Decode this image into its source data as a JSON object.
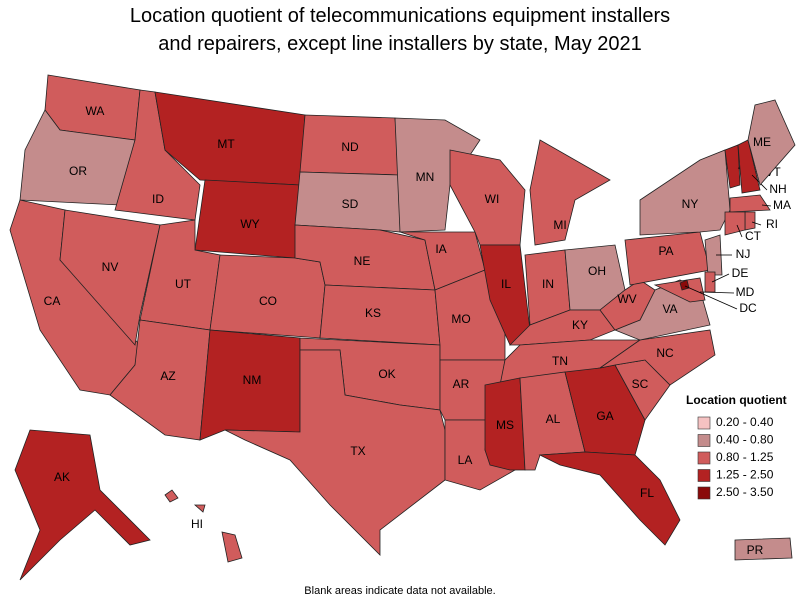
{
  "title": "Location quotient of telecommunications equipment installers and repairers, except line installers by state, May 2021",
  "legend": {
    "title": "Location quotient",
    "classes": [
      {
        "label": "0.20 - 0.40",
        "color": "#f5c2c2"
      },
      {
        "label": "0.40 - 0.80",
        "color": "#c48c8c"
      },
      {
        "label": "0.80 - 1.25",
        "color": "#d05c5c"
      },
      {
        "label": "1.25 - 2.50",
        "color": "#b32222"
      },
      {
        "label": "2.50 - 3.50",
        "color": "#8a0a0a"
      }
    ]
  },
  "states": [
    {
      "abbr": "WA",
      "class": 2
    },
    {
      "abbr": "OR",
      "class": 1
    },
    {
      "abbr": "CA",
      "class": 2
    },
    {
      "abbr": "NV",
      "class": 2
    },
    {
      "abbr": "ID",
      "class": 2
    },
    {
      "abbr": "MT",
      "class": 3
    },
    {
      "abbr": "WY",
      "class": 3
    },
    {
      "abbr": "UT",
      "class": 2
    },
    {
      "abbr": "AZ",
      "class": 2
    },
    {
      "abbr": "CO",
      "class": 2
    },
    {
      "abbr": "NM",
      "class": 3
    },
    {
      "abbr": "ND",
      "class": 2
    },
    {
      "abbr": "SD",
      "class": 1
    },
    {
      "abbr": "NE",
      "class": 2
    },
    {
      "abbr": "KS",
      "class": 2
    },
    {
      "abbr": "OK",
      "class": 2
    },
    {
      "abbr": "TX",
      "class": 2
    },
    {
      "abbr": "MN",
      "class": 1
    },
    {
      "abbr": "IA",
      "class": 2
    },
    {
      "abbr": "MO",
      "class": 2
    },
    {
      "abbr": "AR",
      "class": 2
    },
    {
      "abbr": "LA",
      "class": 2
    },
    {
      "abbr": "WI",
      "class": 2
    },
    {
      "abbr": "IL",
      "class": 3
    },
    {
      "abbr": "MI",
      "class": 2
    },
    {
      "abbr": "IN",
      "class": 2
    },
    {
      "abbr": "OH",
      "class": 1
    },
    {
      "abbr": "KY",
      "class": 2
    },
    {
      "abbr": "TN",
      "class": 2
    },
    {
      "abbr": "MS",
      "class": 3
    },
    {
      "abbr": "AL",
      "class": 2
    },
    {
      "abbr": "GA",
      "class": 3
    },
    {
      "abbr": "FL",
      "class": 3
    },
    {
      "abbr": "SC",
      "class": 2
    },
    {
      "abbr": "NC",
      "class": 2
    },
    {
      "abbr": "VA",
      "class": 1
    },
    {
      "abbr": "WV",
      "class": 2
    },
    {
      "abbr": "PA",
      "class": 2
    },
    {
      "abbr": "NY",
      "class": 1
    },
    {
      "abbr": "VT",
      "class": 3
    },
    {
      "abbr": "NH",
      "class": 3
    },
    {
      "abbr": "ME",
      "class": 1
    },
    {
      "abbr": "MA",
      "class": 2
    },
    {
      "abbr": "RI",
      "class": 2
    },
    {
      "abbr": "CT",
      "class": 2
    },
    {
      "abbr": "NJ",
      "class": 1
    },
    {
      "abbr": "DE",
      "class": 2
    },
    {
      "abbr": "MD",
      "class": 2
    },
    {
      "abbr": "DC",
      "class": 4
    },
    {
      "abbr": "AK",
      "class": 3
    },
    {
      "abbr": "HI",
      "class": 2
    },
    {
      "abbr": "PR",
      "class": 1
    }
  ],
  "note": "Blank areas indicate data not available."
}
